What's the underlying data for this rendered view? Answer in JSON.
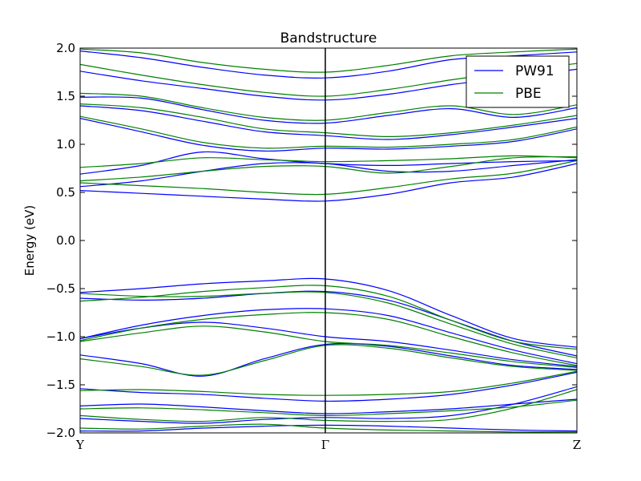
{
  "chart_data": {
    "type": "line",
    "title": "Bandstructure",
    "xlabel": "",
    "ylabel": "Energy (eV)",
    "ylim": [
      -2.0,
      2.0
    ],
    "x_ticks": [
      "Y",
      "Γ",
      "Z"
    ],
    "y_ticks": [
      "−2.0",
      "−1.5",
      "−1.0",
      "−0.5",
      "0.0",
      "0.5",
      "1.0",
      "1.5",
      "2.0"
    ],
    "legend": {
      "placement": "top-right",
      "entries": [
        {
          "name": "PW91",
          "color": "#0000ff"
        },
        {
          "name": "PBE",
          "color": "#008000"
        }
      ]
    },
    "x_positions": [
      0,
      0.125,
      0.25,
      0.375,
      0.5,
      0.625,
      0.75,
      0.875,
      1.0
    ],
    "series": [
      {
        "name": "PW91",
        "color": "#0000ff",
        "bands": [
          [
            -0.54,
            -0.5,
            -0.45,
            -0.42,
            -0.4,
            -0.52,
            -0.78,
            -1.02,
            -1.11
          ],
          [
            -0.6,
            -0.62,
            -0.6,
            -0.55,
            -0.53,
            -0.62,
            -0.83,
            -1.05,
            -1.2
          ],
          [
            -1.02,
            -0.88,
            -0.78,
            -0.72,
            -0.71,
            -0.78,
            -0.96,
            -1.14,
            -1.28
          ],
          [
            -1.02,
            -0.91,
            -0.85,
            -0.91,
            -1.0,
            -1.05,
            -1.14,
            -1.24,
            -1.31
          ],
          [
            -1.19,
            -1.28,
            -1.41,
            -1.23,
            -1.08,
            -1.1,
            -1.2,
            -1.3,
            -1.34
          ],
          [
            -1.54,
            -1.58,
            -1.6,
            -1.64,
            -1.67,
            -1.65,
            -1.6,
            -1.5,
            -1.37
          ],
          [
            -1.72,
            -1.7,
            -1.73,
            -1.77,
            -1.8,
            -1.78,
            -1.75,
            -1.7,
            -1.65
          ],
          [
            -1.85,
            -1.88,
            -1.9,
            -1.86,
            -1.84,
            -1.85,
            -1.82,
            -1.7,
            -1.52
          ],
          [
            -1.98,
            -1.98,
            -1.95,
            -1.93,
            -1.92,
            -1.93,
            -1.95,
            -1.97,
            -1.98
          ],
          [
            0.52,
            0.49,
            0.46,
            0.43,
            0.41,
            0.48,
            0.6,
            0.66,
            0.8
          ],
          [
            0.56,
            0.62,
            0.72,
            0.8,
            0.8,
            0.72,
            0.72,
            0.78,
            0.84
          ],
          [
            0.69,
            0.78,
            0.92,
            0.85,
            0.8,
            0.78,
            0.8,
            0.82,
            0.83
          ],
          [
            1.27,
            1.13,
            0.99,
            0.93,
            0.96,
            0.95,
            0.98,
            1.03,
            1.16
          ],
          [
            1.4,
            1.35,
            1.24,
            1.13,
            1.09,
            1.05,
            1.1,
            1.18,
            1.27
          ],
          [
            1.49,
            1.48,
            1.36,
            1.25,
            1.22,
            1.3,
            1.37,
            1.28,
            1.38
          ],
          [
            1.76,
            1.66,
            1.58,
            1.5,
            1.46,
            1.52,
            1.62,
            1.7,
            1.78
          ],
          [
            1.97,
            1.9,
            1.8,
            1.72,
            1.69,
            1.76,
            1.88,
            1.92,
            1.96
          ]
        ]
      },
      {
        "name": "PBE",
        "color": "#008000",
        "bands": [
          [
            -0.63,
            -0.59,
            -0.53,
            -0.49,
            -0.47,
            -0.58,
            -0.83,
            -1.05,
            -1.13
          ],
          [
            -0.55,
            -0.58,
            -0.58,
            -0.55,
            -0.54,
            -0.65,
            -0.87,
            -1.08,
            -1.22
          ],
          [
            -1.04,
            -0.91,
            -0.82,
            -0.77,
            -0.75,
            -0.82,
            -1.0,
            -1.17,
            -1.3
          ],
          [
            -1.05,
            -0.96,
            -0.89,
            -0.95,
            -1.05,
            -1.09,
            -1.17,
            -1.26,
            -1.32
          ],
          [
            -1.23,
            -1.31,
            -1.4,
            -1.25,
            -1.09,
            -1.12,
            -1.22,
            -1.31,
            -1.35
          ],
          [
            -1.56,
            -1.55,
            -1.57,
            -1.6,
            -1.61,
            -1.6,
            -1.57,
            -1.48,
            -1.36
          ],
          [
            -1.75,
            -1.74,
            -1.76,
            -1.79,
            -1.82,
            -1.8,
            -1.77,
            -1.73,
            -1.66
          ],
          [
            -1.82,
            -1.86,
            -1.88,
            -1.84,
            -1.87,
            -1.88,
            -1.86,
            -1.74,
            -1.55
          ],
          [
            -1.95,
            -1.96,
            -1.93,
            -1.91,
            -1.95,
            -1.97,
            -1.98,
            -1.99,
            -1.99
          ],
          [
            0.6,
            0.57,
            0.54,
            0.5,
            0.48,
            0.55,
            0.64,
            0.7,
            0.83
          ],
          [
            0.62,
            0.66,
            0.72,
            0.77,
            0.77,
            0.7,
            0.77,
            0.86,
            0.87
          ],
          [
            0.76,
            0.8,
            0.86,
            0.84,
            0.82,
            0.83,
            0.85,
            0.88,
            0.86
          ],
          [
            1.29,
            1.16,
            1.02,
            0.96,
            0.98,
            0.97,
            1.0,
            1.05,
            1.18
          ],
          [
            1.42,
            1.38,
            1.28,
            1.16,
            1.12,
            1.08,
            1.12,
            1.2,
            1.3
          ],
          [
            1.53,
            1.5,
            1.38,
            1.28,
            1.25,
            1.33,
            1.4,
            1.31,
            1.41
          ],
          [
            1.83,
            1.72,
            1.62,
            1.54,
            1.5,
            1.57,
            1.67,
            1.76,
            1.84
          ],
          [
            1.99,
            1.95,
            1.85,
            1.78,
            1.75,
            1.82,
            1.92,
            1.96,
            1.99
          ]
        ]
      }
    ]
  }
}
